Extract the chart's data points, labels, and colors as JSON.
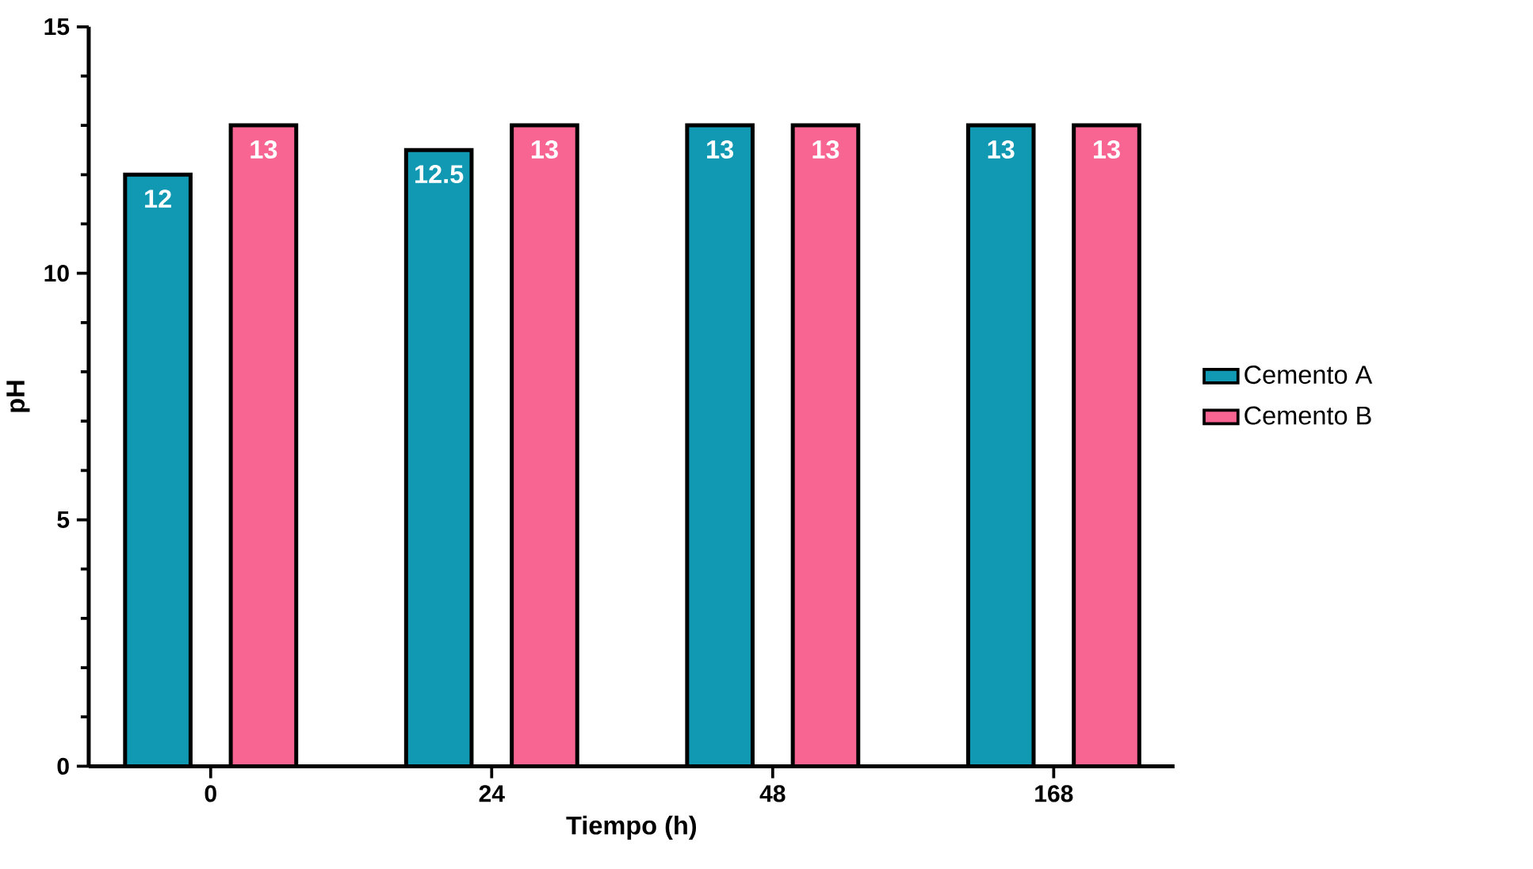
{
  "chart_data": {
    "type": "bar",
    "xlabel": "Tiempo (h)",
    "ylabel": "pH",
    "categories": [
      "0",
      "24",
      "48",
      "168"
    ],
    "series": [
      {
        "name": "Cemento A",
        "color": "#1199b3",
        "values": [
          12,
          12.5,
          13,
          13
        ],
        "value_labels": [
          "12",
          "12.5",
          "13",
          "13"
        ]
      },
      {
        "name": "Cemento B",
        "color": "#f86592",
        "values": [
          13,
          13,
          13,
          13
        ],
        "value_labels": [
          "13",
          "13",
          "13",
          "13"
        ]
      }
    ],
    "ylim": [
      0,
      15
    ],
    "yticks": [
      0,
      5,
      10,
      15
    ],
    "grid": false,
    "legend": "right"
  }
}
